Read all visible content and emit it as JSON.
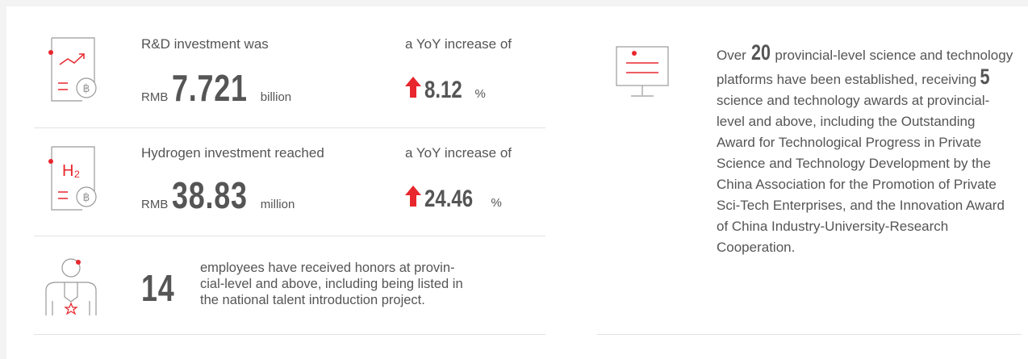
{
  "rows": [
    {
      "label": "R&D investment was",
      "prefix": "RMB",
      "amount": "7.721",
      "unit": "billion",
      "change_label": "a YoY increase of",
      "change": "8.12",
      "change_unit": "%"
    },
    {
      "label": "Hydrogen investment reached",
      "prefix": "RMB",
      "amount": "38.83",
      "unit": "million",
      "change_label": "a YoY increase of",
      "change": "24.46",
      "change_unit": "%"
    }
  ],
  "talent": {
    "number": "14",
    "lines": [
      "employees have received honors at provin-",
      "cial-level and above, including being listed in",
      "the national talent introduction project."
    ]
  },
  "platforms": {
    "segments": [
      "Over",
      "20",
      "provincial-level science and technology platforms have been established, receiving",
      "5",
      "science and technology awards at provincial-level and above, including the Outstanding Award for Technological Progress in Private Science and Technology Development by the China Association for the Promotion of Private Sci-Tech Enterprises, and the Innovation Award of China Industry-University-Research Cooperation."
    ]
  }
}
